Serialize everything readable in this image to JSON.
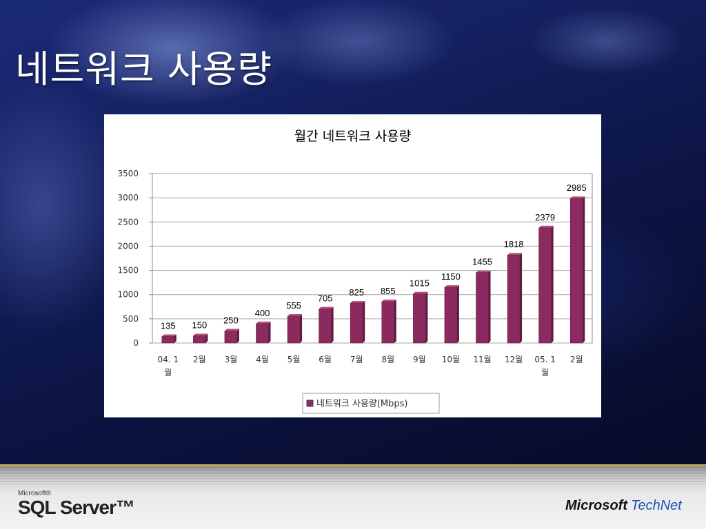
{
  "slide": {
    "title": "네트워크 사용량"
  },
  "footer": {
    "sql_small": "Microsoft®",
    "sql_big": "SQL Server™",
    "ms_word": "Microsoft",
    "technet_word": "TechNet"
  },
  "colors": {
    "bar_fill": "#8b2a5e",
    "bar_side": "#5e1a40",
    "bar_top": "#b2507f",
    "accent_line": "#c8a23a"
  },
  "chart_data": {
    "type": "bar",
    "title": "월간 네트워크 사용량",
    "xlabel": "",
    "ylabel": "",
    "ylim": [
      0,
      3500
    ],
    "yticks": [
      0,
      500,
      1000,
      1500,
      2000,
      2500,
      3000,
      3500
    ],
    "grid": true,
    "legend_position": "bottom",
    "categories": [
      [
        "04. 1",
        "월"
      ],
      [
        "2월"
      ],
      [
        "3월"
      ],
      [
        "4월"
      ],
      [
        "5월"
      ],
      [
        "6월"
      ],
      [
        "7월"
      ],
      [
        "8월"
      ],
      [
        "9월"
      ],
      [
        "10월"
      ],
      [
        "11월"
      ],
      [
        "12월"
      ],
      [
        "05. 1",
        "월"
      ],
      [
        "2월"
      ]
    ],
    "series": [
      {
        "name": "네트워크 사용량(Mbps)",
        "values": [
          135,
          150,
          250,
          400,
          555,
          705,
          825,
          855,
          1015,
          1150,
          1455,
          1818,
          2379,
          2985
        ]
      }
    ]
  }
}
